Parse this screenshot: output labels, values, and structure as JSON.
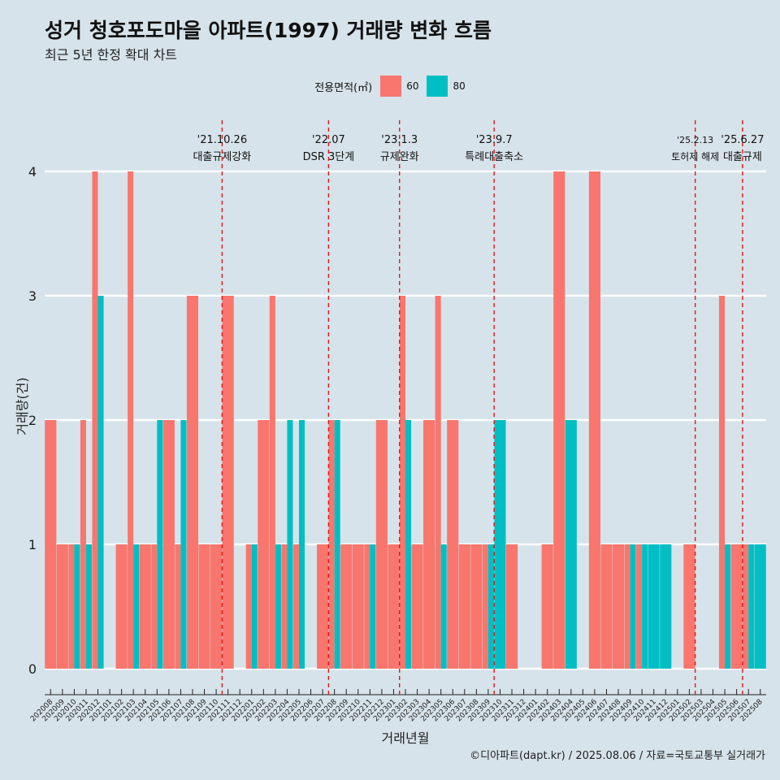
{
  "title": "성거 청호포도마을 아파트(1997) 거래량 변화 흐름",
  "subtitle": "최근 5년 한정 확대 차트",
  "caption": "©디아파트(dapt.kr) / 2025.08.06 / 자료=국토교통부 실거래가",
  "legend": {
    "title": "전용면적(㎡)",
    "items": [
      {
        "label": "60",
        "color": "#f8766d"
      },
      {
        "label": "80",
        "color": "#00bfc4"
      }
    ]
  },
  "chart_data": {
    "type": "bar",
    "xlabel": "거래년월",
    "ylabel": "거래량(건)",
    "ylim": [
      0,
      4
    ],
    "yticks": [
      0,
      1,
      2,
      3,
      4
    ],
    "grid": true,
    "legend_position": "top",
    "categories": [
      "202008",
      "202009",
      "202010",
      "202011",
      "202012",
      "202101",
      "202102",
      "202103",
      "202104",
      "202105",
      "202106",
      "202107",
      "202108",
      "202109",
      "202110",
      "202111",
      "202112",
      "202201",
      "202202",
      "202203",
      "202204",
      "202205",
      "202206",
      "202207",
      "202208",
      "202209",
      "202210",
      "202211",
      "202212",
      "202301",
      "202302",
      "202303",
      "202304",
      "202305",
      "202306",
      "202307",
      "202308",
      "202309",
      "202310",
      "202311",
      "202312",
      "202401",
      "202402",
      "202403",
      "202404",
      "202405",
      "202406",
      "202407",
      "202408",
      "202409",
      "202410",
      "202411",
      "202412",
      "202501",
      "202502",
      "202503",
      "202504",
      "202505",
      "202506",
      "202507",
      "202508"
    ],
    "series": [
      {
        "name": "60",
        "color": "#f8766d",
        "values": [
          2,
          1,
          1,
          2,
          4,
          0,
          1,
          4,
          1,
          1,
          2,
          1,
          3,
          1,
          1,
          3,
          0,
          1,
          2,
          3,
          1,
          1,
          0,
          1,
          2,
          1,
          1,
          1,
          2,
          1,
          3,
          1,
          2,
          3,
          2,
          1,
          1,
          1,
          0,
          1,
          0,
          0,
          1,
          4,
          0,
          0,
          4,
          1,
          1,
          1,
          1,
          0,
          0,
          0,
          1,
          0,
          0,
          3,
          1,
          1,
          0
        ]
      },
      {
        "name": "80",
        "color": "#00bfc4",
        "values": [
          0,
          0,
          1,
          1,
          3,
          0,
          0,
          1,
          0,
          2,
          0,
          2,
          0,
          0,
          0,
          0,
          0,
          1,
          0,
          1,
          2,
          2,
          0,
          0,
          2,
          0,
          0,
          1,
          0,
          0,
          2,
          0,
          0,
          1,
          0,
          0,
          0,
          1,
          2,
          0,
          0,
          0,
          0,
          0,
          2,
          0,
          0,
          0,
          0,
          1,
          1,
          1,
          1,
          0,
          0,
          0,
          0,
          1,
          0,
          1,
          1
        ]
      }
    ],
    "annotations": [
      {
        "date": "'21.10.26",
        "label": "대출규제강화",
        "after": "202110"
      },
      {
        "date": "'22.07",
        "label": "DSR 3단계",
        "after": "202207"
      },
      {
        "date": "'23.1.3",
        "label": "규제완화",
        "after": "202301"
      },
      {
        "date": "'23.9.7",
        "label": "특례대출축소",
        "after": "202309"
      },
      {
        "date": "'25.2.13",
        "label": "토허제 해제",
        "after": "202502"
      },
      {
        "date": "'25.6.27",
        "label": "대출규제",
        "after": "202506"
      }
    ]
  }
}
